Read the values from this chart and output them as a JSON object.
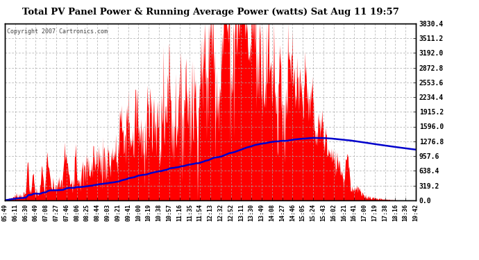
{
  "title": "Total PV Panel Power & Running Average Power (watts) Sat Aug 11 19:57",
  "copyright": "Copyright 2007 Cartronics.com",
  "background_color": "#ffffff",
  "plot_bg_color": "#ffffff",
  "grid_color": "#aaaaaa",
  "fill_color": "#ff0000",
  "line_color": "#0000cc",
  "y_ticks": [
    0.0,
    319.2,
    638.4,
    957.6,
    1276.8,
    1596.0,
    1915.2,
    2234.4,
    2553.6,
    2872.8,
    3192.0,
    3511.2,
    3830.4
  ],
  "x_labels": [
    "05:49",
    "06:11",
    "06:30",
    "06:49",
    "07:08",
    "07:27",
    "07:46",
    "08:06",
    "08:25",
    "08:44",
    "09:03",
    "09:21",
    "09:41",
    "10:00",
    "10:19",
    "10:38",
    "10:57",
    "11:16",
    "11:35",
    "11:54",
    "12:13",
    "12:32",
    "12:52",
    "13:11",
    "13:30",
    "13:49",
    "14:08",
    "14:27",
    "14:46",
    "15:05",
    "15:24",
    "15:43",
    "16:02",
    "16:21",
    "16:41",
    "17:00",
    "17:19",
    "17:38",
    "18:16",
    "18:36",
    "19:42"
  ],
  "ymax": 3830.4,
  "ymin": 0.0
}
